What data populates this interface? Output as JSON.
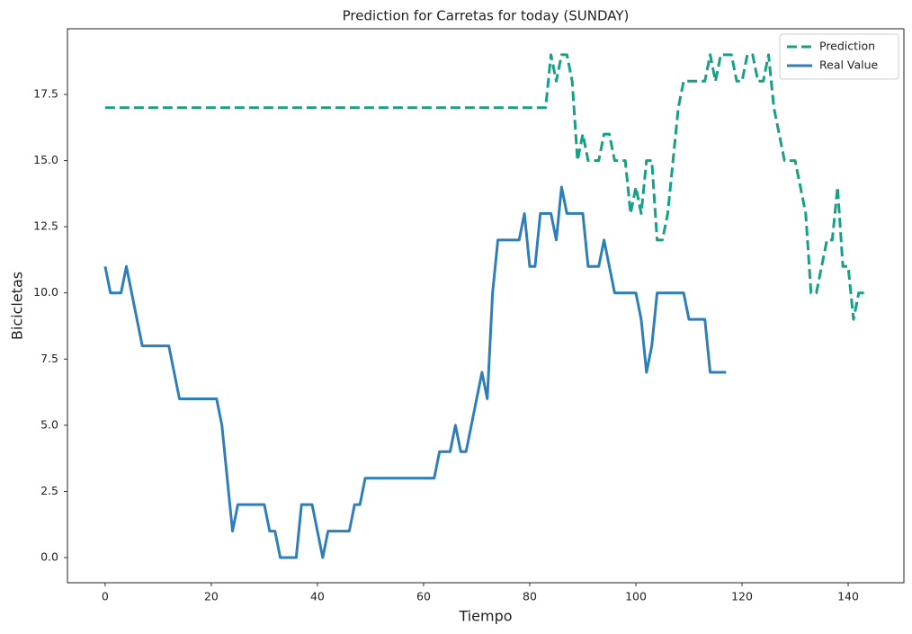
{
  "chart_data": {
    "type": "line",
    "title": "Prediction for Carretas for today (SUNDAY)",
    "x_label": "Tiempo",
    "y_label": "Bicicletas",
    "x": [
      0,
      1,
      2,
      3,
      4,
      5,
      6,
      7,
      8,
      9,
      10,
      11,
      12,
      13,
      14,
      15,
      16,
      17,
      18,
      19,
      20,
      21,
      22,
      23,
      24,
      25,
      26,
      27,
      28,
      29,
      30,
      31,
      32,
      33,
      34,
      35,
      36,
      37,
      38,
      39,
      40,
      41,
      42,
      43,
      44,
      45,
      46,
      47,
      48,
      49,
      50,
      51,
      52,
      53,
      54,
      55,
      56,
      57,
      58,
      59,
      60,
      61,
      62,
      63,
      64,
      65,
      66,
      67,
      68,
      69,
      70,
      71,
      72,
      73,
      74,
      75,
      76,
      77,
      78,
      79,
      80,
      81,
      82,
      83,
      84,
      85,
      86,
      87,
      88,
      89,
      90,
      91,
      92,
      93,
      94,
      95,
      96,
      97,
      98,
      99,
      100,
      101,
      102,
      103,
      104,
      105,
      106,
      107,
      108,
      109,
      110,
      111,
      112,
      113,
      114,
      115,
      116,
      117,
      118,
      119,
      120,
      121,
      122,
      123,
      124,
      125,
      126,
      127,
      128,
      129,
      130,
      131,
      132,
      133,
      134,
      135,
      136,
      137,
      138,
      139,
      140,
      141,
      142,
      143
    ],
    "series": [
      {
        "name": "Prediction",
        "color": "#17a085",
        "dashed": true,
        "values": [
          17,
          17,
          17,
          17,
          17,
          17,
          17,
          17,
          17,
          17,
          17,
          17,
          17,
          17,
          17,
          17,
          17,
          17,
          17,
          17,
          17,
          17,
          17,
          17,
          17,
          17,
          17,
          17,
          17,
          17,
          17,
          17,
          17,
          17,
          17,
          17,
          17,
          17,
          17,
          17,
          17,
          17,
          17,
          17,
          17,
          17,
          17,
          17,
          17,
          17,
          17,
          17,
          17,
          17,
          17,
          17,
          17,
          17,
          17,
          17,
          17,
          17,
          17,
          17,
          17,
          17,
          17,
          17,
          17,
          17,
          17,
          17,
          17,
          17,
          17,
          17,
          17,
          17,
          17,
          17,
          17,
          17,
          17,
          17,
          19,
          18,
          19,
          19,
          18,
          15,
          16,
          15,
          15,
          15,
          16,
          16,
          15,
          15,
          15,
          13,
          14,
          13,
          15,
          15,
          12,
          12,
          13,
          15,
          17,
          18,
          18,
          18,
          18,
          18,
          19,
          18,
          19,
          19,
          19,
          18,
          18,
          19,
          19,
          18,
          18,
          19,
          17,
          16,
          15,
          15,
          15,
          14,
          13,
          10,
          10,
          11,
          12,
          12,
          14,
          11,
          11,
          9,
          10,
          10
        ]
      },
      {
        "name": "Real Value",
        "color": "#2e7fb8",
        "dashed": false,
        "values": [
          11,
          10,
          10,
          10,
          11,
          10,
          9,
          8,
          8,
          8,
          8,
          8,
          8,
          7,
          6,
          6,
          6,
          6,
          6,
          6,
          6,
          6,
          5,
          3,
          1,
          2,
          2,
          2,
          2,
          2,
          2,
          1,
          1,
          0,
          0,
          0,
          0,
          2,
          2,
          2,
          1,
          0,
          1,
          1,
          1,
          1,
          1,
          2,
          2,
          3,
          3,
          3,
          3,
          3,
          3,
          3,
          3,
          3,
          3,
          3,
          3,
          3,
          3,
          4,
          4,
          4,
          5,
          4,
          4,
          5,
          6,
          7,
          6,
          10,
          12,
          12,
          12,
          12,
          12,
          13,
          11,
          11,
          13,
          13,
          13,
          12,
          14,
          13,
          13,
          13,
          13,
          11,
          11,
          11,
          12,
          11,
          10,
          10,
          10,
          10,
          10,
          9,
          7,
          8,
          10,
          10,
          10,
          10,
          10,
          10,
          9,
          9,
          9,
          9,
          7,
          7,
          7,
          7,
          null,
          null,
          null,
          null,
          null,
          null,
          null,
          null,
          null,
          null,
          null,
          null,
          null,
          null,
          null,
          null,
          null,
          null,
          null,
          null,
          null,
          null,
          null,
          null,
          null,
          null
        ]
      }
    ],
    "xlim": [
      -7.1,
      150.5
    ],
    "ylim": [
      -0.95,
      19.98
    ],
    "xticks": [
      0,
      20,
      40,
      60,
      80,
      100,
      120,
      140
    ],
    "yticks": [
      {
        "value": 0,
        "label": "0.0"
      },
      2.5,
      {
        "value": 5,
        "label": "5.0"
      },
      7.5,
      {
        "value": 10,
        "label": "10.0"
      },
      12.5,
      {
        "value": 15,
        "label": "15.0"
      },
      17.5
    ],
    "legend": "upper right",
    "grid": false
  }
}
